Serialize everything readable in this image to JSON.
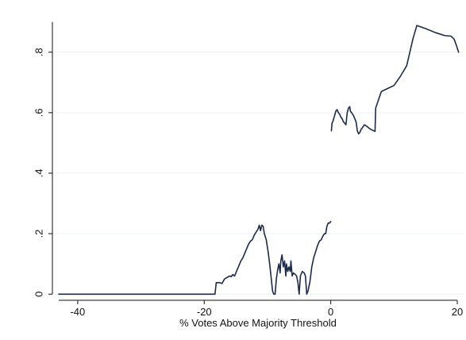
{
  "chart_data": {
    "type": "line",
    "title": "",
    "xlabel": "% Votes Above Majority Threshold",
    "ylabel": "",
    "xlim": [
      -44,
      21
    ],
    "ylim": [
      -0.015,
      0.92
    ],
    "x_ticks": [
      {
        "value": -40,
        "label": "-40"
      },
      {
        "value": -20,
        "label": "-20"
      },
      {
        "value": 0,
        "label": "0"
      },
      {
        "value": 20,
        "label": "20"
      }
    ],
    "y_ticks": [
      {
        "value": 0,
        "label": "0"
      },
      {
        "value": 0.2,
        "label": ".2"
      },
      {
        "value": 0.4,
        "label": ".4"
      },
      {
        "value": 0.6,
        "label": ".6"
      },
      {
        "value": 0.8,
        "label": ".8"
      }
    ],
    "grid": "horizontal",
    "legend": "none",
    "line_color": "#1a2b4c",
    "series": [
      {
        "points": [
          [
            -43,
            0
          ],
          [
            -18.3,
            0
          ],
          [
            -18.1,
            0.038
          ],
          [
            -17.5,
            0.038
          ],
          [
            -17.2,
            0.035
          ],
          [
            -16.8,
            0.05
          ],
          [
            -16.4,
            0.055
          ],
          [
            -16.0,
            0.06
          ],
          [
            -15.7,
            0.058
          ],
          [
            -15.5,
            0.065
          ],
          [
            -15.2,
            0.06
          ],
          [
            -14.9,
            0.075
          ],
          [
            -14.5,
            0.095
          ],
          [
            -14.2,
            0.11
          ],
          [
            -13.9,
            0.12
          ],
          [
            -13.6,
            0.135
          ],
          [
            -13.3,
            0.15
          ],
          [
            -13.0,
            0.165
          ],
          [
            -12.7,
            0.175
          ],
          [
            -12.4,
            0.18
          ],
          [
            -12.1,
            0.195
          ],
          [
            -11.8,
            0.205
          ],
          [
            -11.5,
            0.215
          ],
          [
            -11.3,
            0.228
          ],
          [
            -11.1,
            0.21
          ],
          [
            -10.9,
            0.228
          ],
          [
            -10.7,
            0.225
          ],
          [
            -10.5,
            0.2
          ],
          [
            -10.2,
            0.18
          ],
          [
            -9.9,
            0.14
          ],
          [
            -9.6,
            0.09
          ],
          [
            -9.4,
            0.05
          ],
          [
            -9.2,
            0.01
          ],
          [
            -9.0,
            0
          ],
          [
            -8.8,
            0.0
          ],
          [
            -8.6,
            0.05
          ],
          [
            -8.4,
            0.08
          ],
          [
            -8.2,
            0.1
          ],
          [
            -8.0,
            0.07
          ],
          [
            -7.9,
            0.11
          ],
          [
            -7.7,
            0.13
          ],
          [
            -7.5,
            0.09
          ],
          [
            -7.3,
            0.11
          ],
          [
            -7.1,
            0.06
          ],
          [
            -7.0,
            0.1
          ],
          [
            -6.8,
            0.075
          ],
          [
            -6.6,
            0.09
          ],
          [
            -6.4,
            0.075
          ],
          [
            -6.3,
            0.11
          ],
          [
            -6.1,
            0.06
          ],
          [
            -5.9,
            0.07
          ],
          [
            -5.6,
            0.065
          ],
          [
            -5.4,
            0.06
          ],
          [
            -5.2,
            0.04
          ],
          [
            -5.0,
            0.0
          ],
          [
            -4.8,
            0.06
          ],
          [
            -4.5,
            0.075
          ],
          [
            -4.2,
            0.07
          ],
          [
            -4.0,
            0.06
          ],
          [
            -3.8,
            0.0
          ],
          [
            -3.6,
            0.01
          ],
          [
            -3.3,
            0.04
          ],
          [
            -3.0,
            0.09
          ],
          [
            -2.7,
            0.12
          ],
          [
            -2.4,
            0.14
          ],
          [
            -2.1,
            0.16
          ],
          [
            -1.8,
            0.175
          ],
          [
            -1.5,
            0.18
          ],
          [
            -1.3,
            0.19
          ],
          [
            -1.0,
            0.2
          ],
          [
            -0.8,
            0.2
          ],
          [
            -0.6,
            0.225
          ],
          [
            -0.4,
            0.235
          ],
          [
            -0.2,
            0.235
          ],
          [
            0.0,
            0.24
          ]
        ]
      },
      {
        "points": [
          [
            0.1,
            0.54
          ],
          [
            0.2,
            0.565
          ],
          [
            0.4,
            0.575
          ],
          [
            0.6,
            0.59
          ],
          [
            0.8,
            0.605
          ],
          [
            1.0,
            0.61
          ],
          [
            1.2,
            0.6
          ],
          [
            1.4,
            0.595
          ],
          [
            1.6,
            0.585
          ],
          [
            1.8,
            0.58
          ],
          [
            2.0,
            0.57
          ],
          [
            2.2,
            0.565
          ],
          [
            2.4,
            0.56
          ],
          [
            2.6,
            0.6
          ],
          [
            2.8,
            0.615
          ],
          [
            3.0,
            0.62
          ],
          [
            3.1,
            0.605
          ],
          [
            3.3,
            0.6
          ],
          [
            3.6,
            0.59
          ],
          [
            3.8,
            0.58
          ],
          [
            4.0,
            0.57
          ],
          [
            4.2,
            0.54
          ],
          [
            4.4,
            0.53
          ],
          [
            4.6,
            0.535
          ],
          [
            4.8,
            0.545
          ],
          [
            5.0,
            0.55
          ],
          [
            5.3,
            0.56
          ],
          [
            5.7,
            0.555
          ],
          [
            6.1,
            0.548
          ],
          [
            6.5,
            0.543
          ],
          [
            7.0,
            0.538
          ],
          [
            7.1,
            0.615
          ],
          [
            7.5,
            0.64
          ],
          [
            8.0,
            0.67
          ],
          [
            8.5,
            0.675
          ],
          [
            9.0,
            0.68
          ],
          [
            10.0,
            0.69
          ],
          [
            11.0,
            0.72
          ],
          [
            12.0,
            0.755
          ],
          [
            12.5,
            0.8
          ],
          [
            13.0,
            0.845
          ],
          [
            13.6,
            0.888
          ],
          [
            15.0,
            0.878
          ],
          [
            16.5,
            0.865
          ],
          [
            18.0,
            0.855
          ],
          [
            19.0,
            0.853
          ],
          [
            19.5,
            0.843
          ],
          [
            19.9,
            0.82
          ],
          [
            20.2,
            0.8
          ]
        ]
      }
    ]
  }
}
